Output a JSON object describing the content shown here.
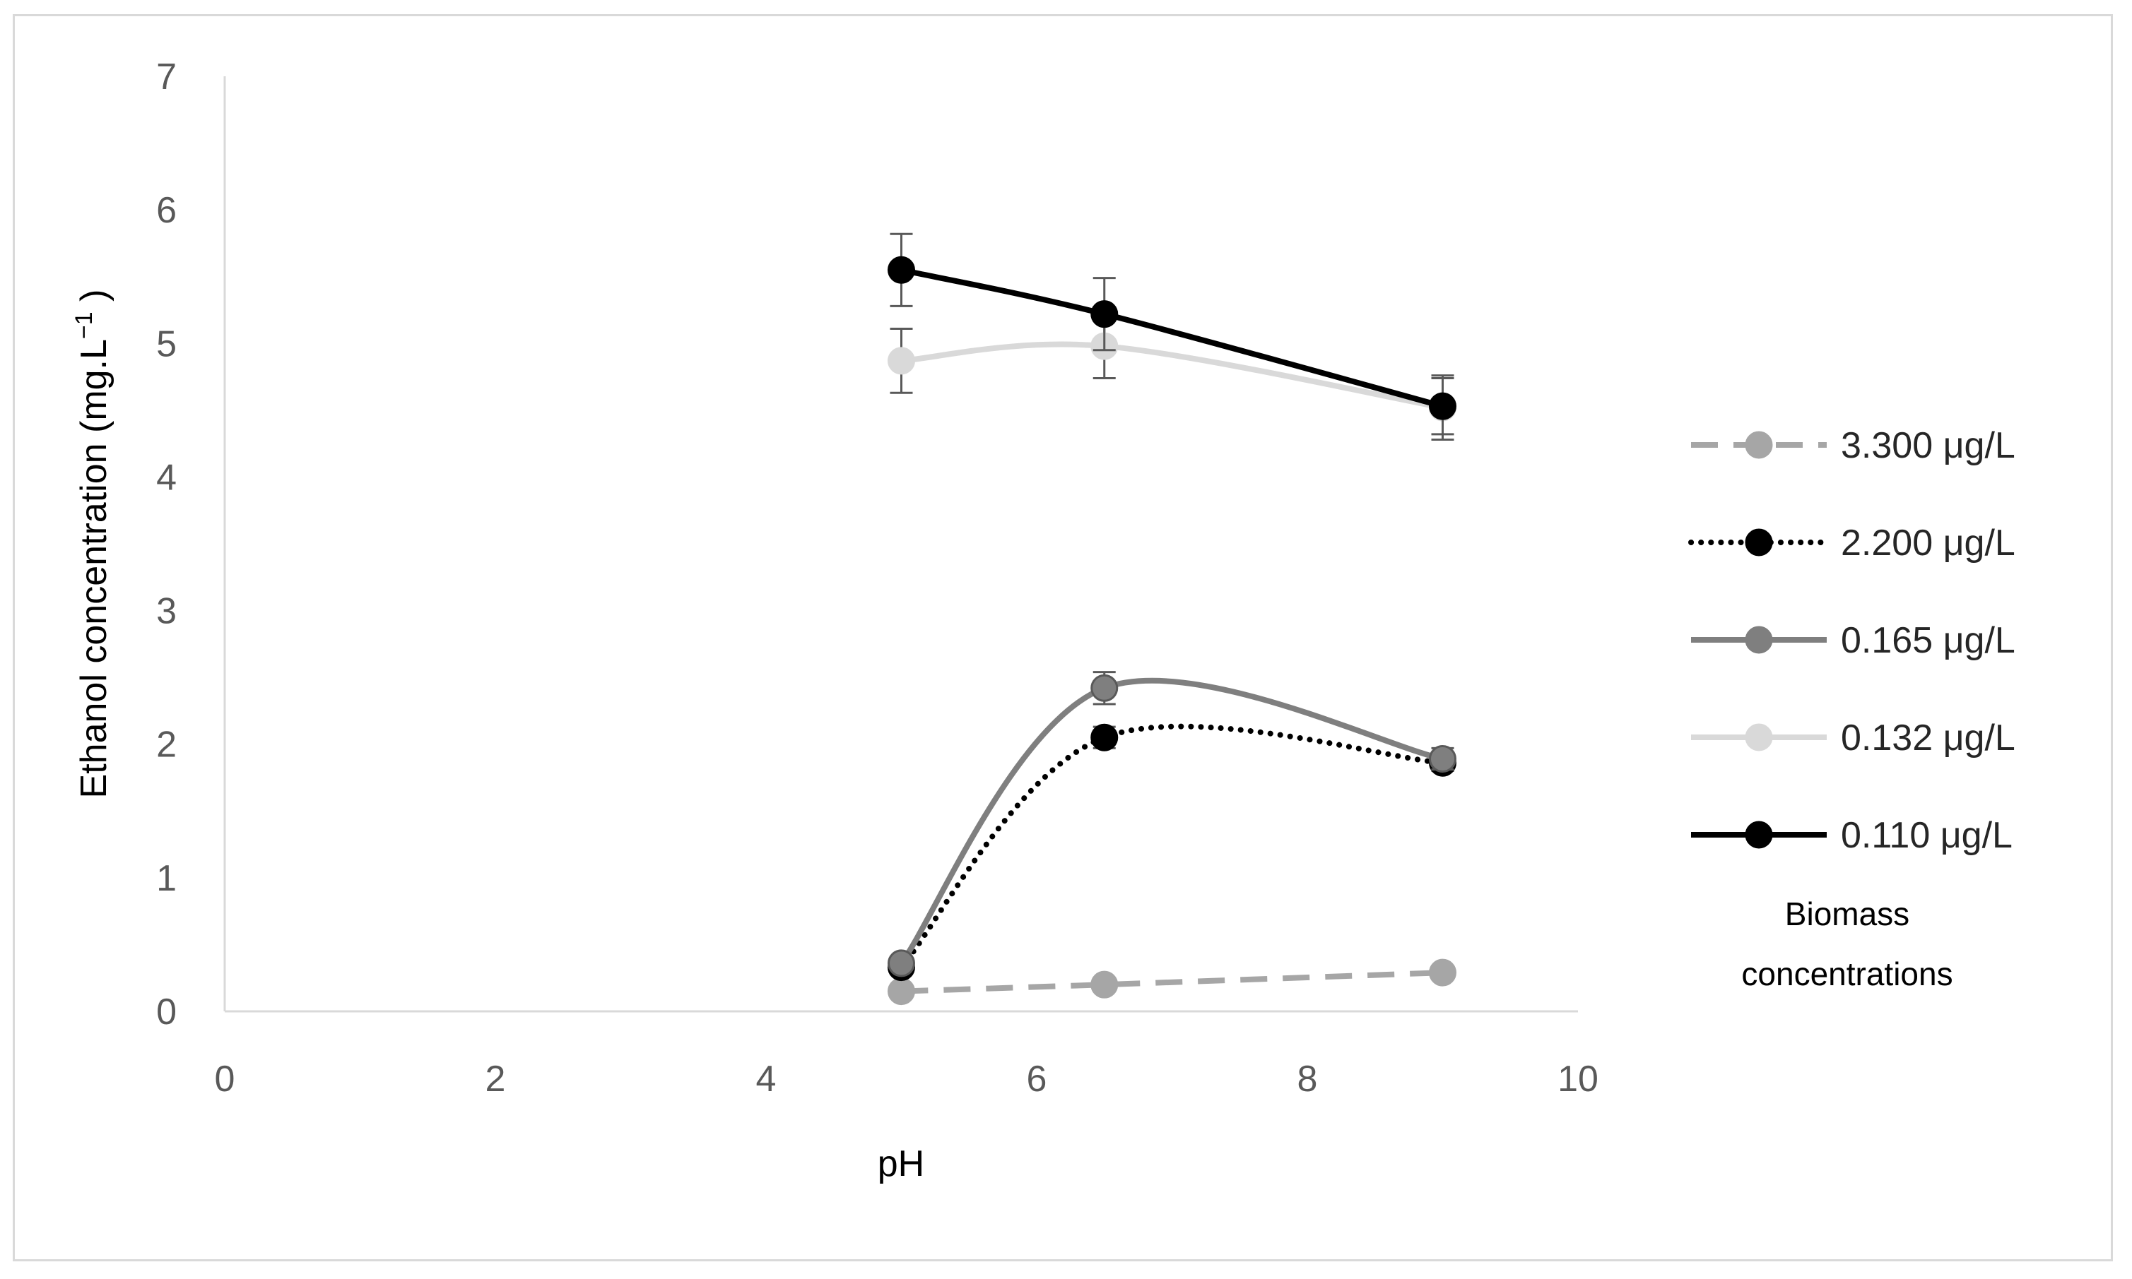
{
  "chart_data": {
    "type": "line",
    "title": "",
    "xlabel": "pH",
    "ylabel": "Ethanol concentration (mg.L",
    "ylabel_sup": "−1",
    "ylabel_close": " )",
    "xlim": [
      0,
      10
    ],
    "ylim": [
      0,
      7
    ],
    "xticks": [
      0,
      2,
      4,
      6,
      8,
      10
    ],
    "yticks": [
      0,
      1,
      2,
      3,
      4,
      5,
      6,
      7
    ],
    "grid": false,
    "smooth": true,
    "legend_title": [
      "Biomass",
      "concentrations"
    ],
    "legend_position": "right",
    "x": [
      5,
      6.5,
      9
    ],
    "series": [
      {
        "name": "3.300 μg/L",
        "values": [
          0.15,
          0.2,
          0.29
        ],
        "errors": [
          0,
          0,
          0
        ],
        "color": "#a6a6a6",
        "dash": "dashed"
      },
      {
        "name": "2.200 μg/L",
        "values": [
          0.33,
          2.05,
          1.86
        ],
        "errors": [
          0,
          0.08,
          0.06
        ],
        "color": "#000000",
        "dash": "dotted"
      },
      {
        "name": "0.165 μg/L",
        "values": [
          0.36,
          2.42,
          1.89
        ],
        "errors": [
          0.05,
          0.12,
          0.08
        ],
        "color": "#7f7f7f",
        "dash": "solid"
      },
      {
        "name": "0.132 μg/L",
        "values": [
          4.87,
          4.98,
          4.52
        ],
        "errors": [
          0.24,
          0.24,
          0.24
        ],
        "color": "#d9d9d9",
        "dash": "solid"
      },
      {
        "name": "0.110 μg/L",
        "values": [
          5.55,
          5.22,
          4.53
        ],
        "errors": [
          0.27,
          0.27,
          0.21
        ],
        "color": "#000000",
        "dash": "solid"
      }
    ]
  }
}
